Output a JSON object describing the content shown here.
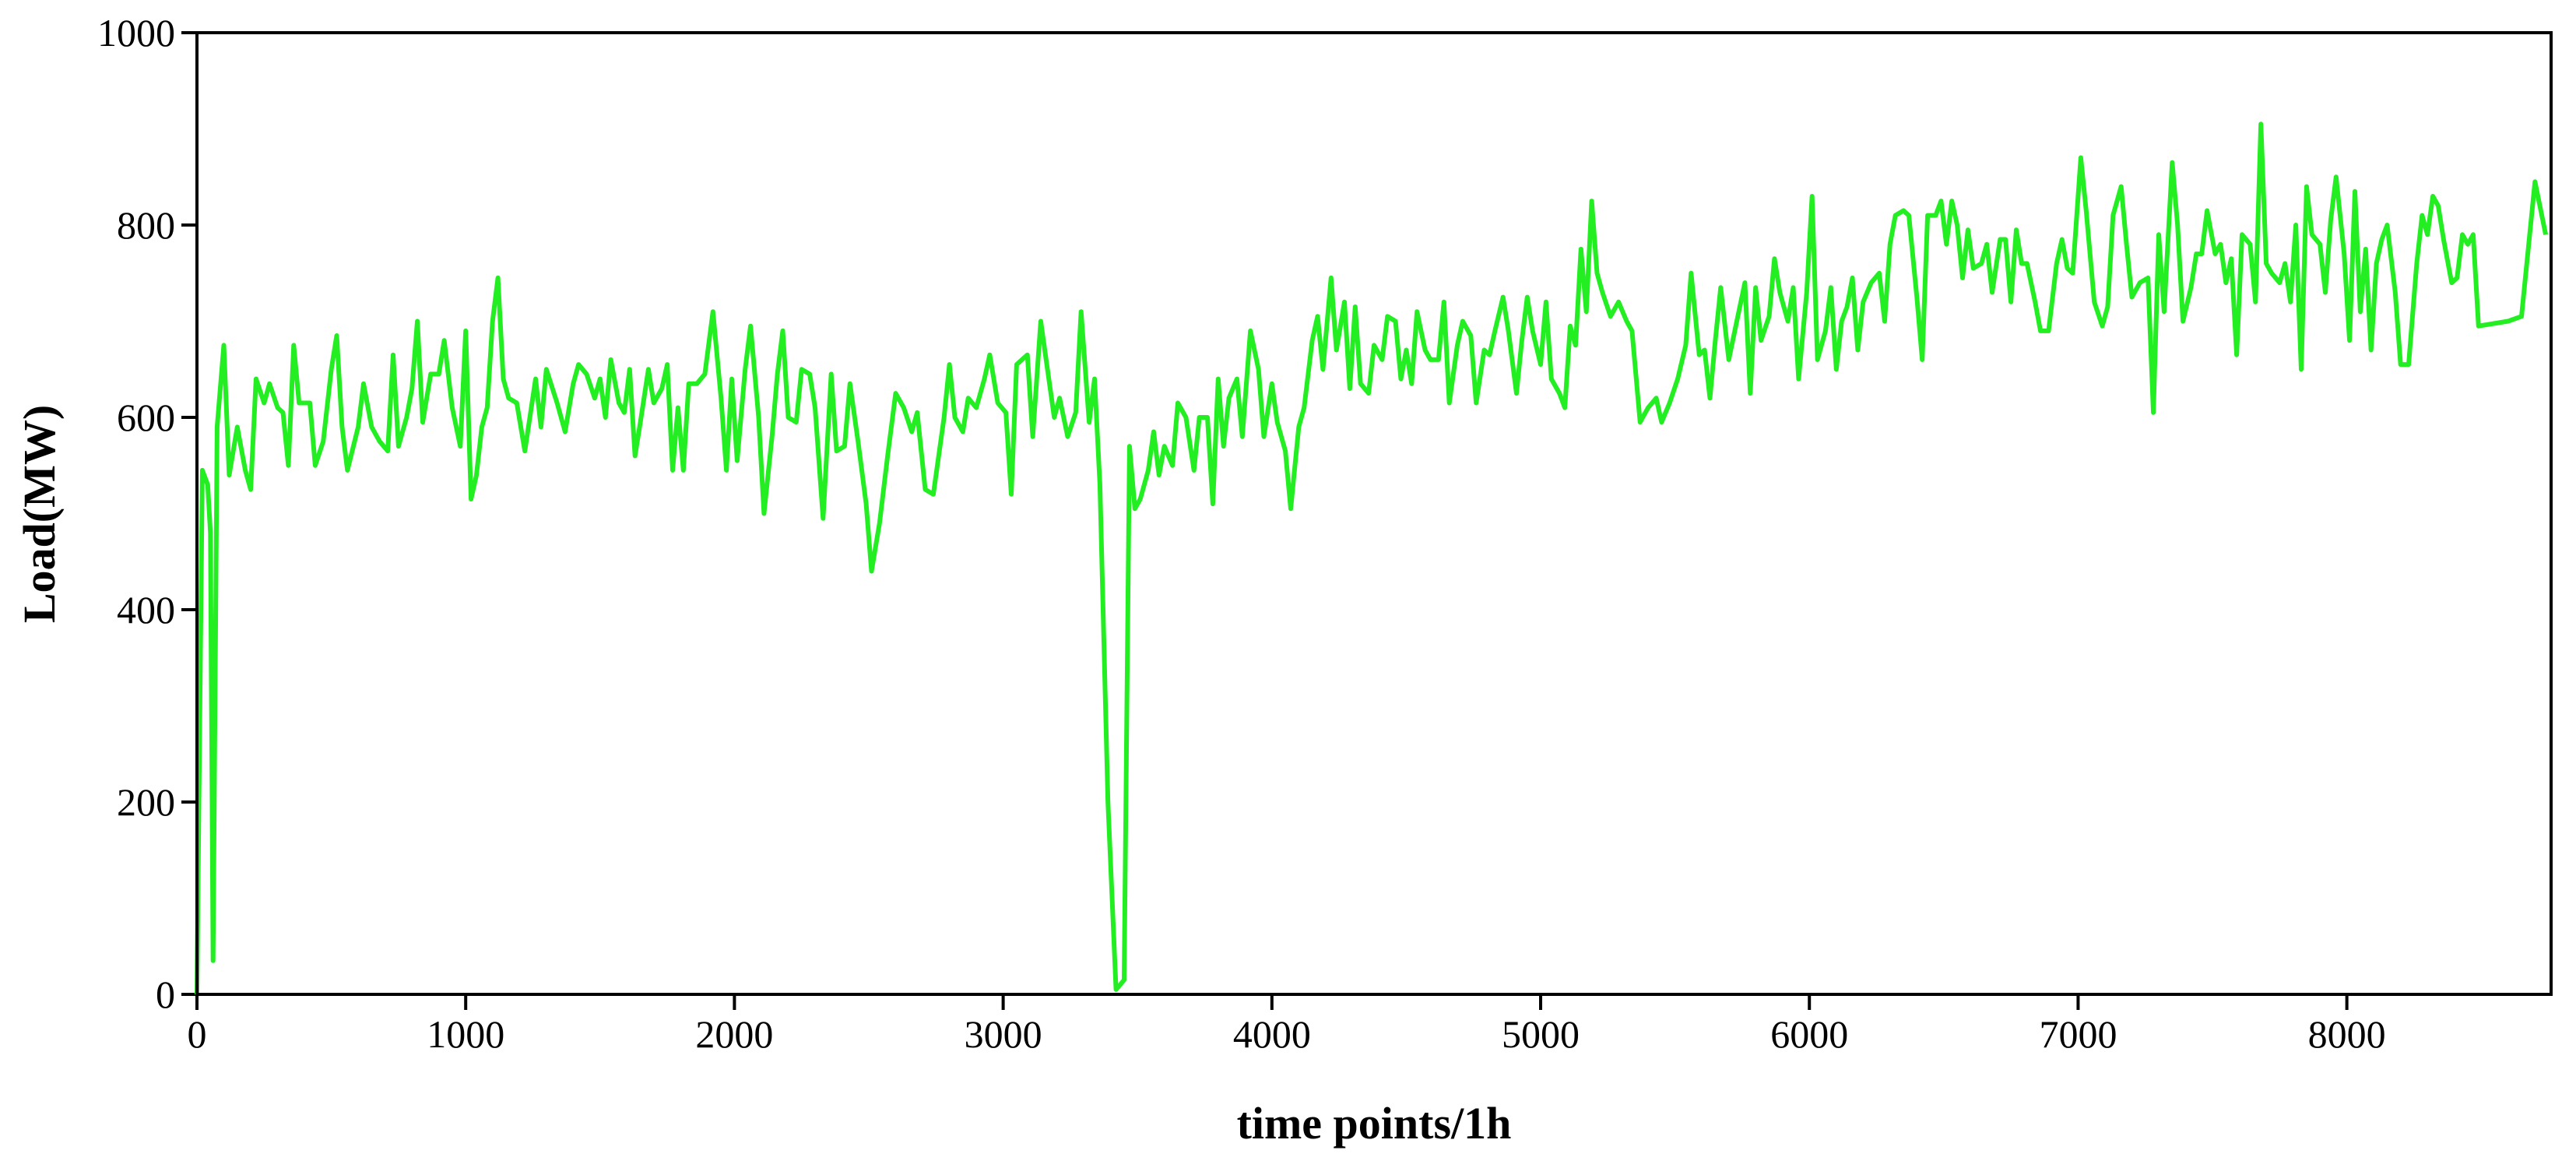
{
  "chart_data": {
    "type": "line",
    "xlabel": "time points/1h",
    "ylabel": "Load(MW)",
    "xlim": [
      0,
      8760
    ],
    "ylim": [
      0,
      1000
    ],
    "xticks": [
      0,
      1000,
      2000,
      3000,
      4000,
      5000,
      6000,
      7000,
      8000
    ],
    "yticks": [
      0,
      200,
      400,
      600,
      800,
      1000
    ],
    "color": "#22ee22",
    "x": [
      0,
      20,
      40,
      50,
      60,
      75,
      100,
      120,
      150,
      180,
      200,
      220,
      250,
      270,
      300,
      320,
      340,
      360,
      380,
      420,
      440,
      470,
      500,
      520,
      540,
      560,
      600,
      620,
      650,
      680,
      710,
      730,
      750,
      780,
      800,
      820,
      840,
      870,
      900,
      920,
      950,
      980,
      1000,
      1020,
      1040,
      1060,
      1080,
      1100,
      1120,
      1140,
      1160,
      1190,
      1220,
      1260,
      1280,
      1300,
      1340,
      1370,
      1400,
      1420,
      1450,
      1480,
      1500,
      1520,
      1540,
      1570,
      1590,
      1610,
      1630,
      1650,
      1680,
      1700,
      1730,
      1750,
      1770,
      1790,
      1810,
      1830,
      1860,
      1890,
      1920,
      1950,
      1970,
      1990,
      2010,
      2040,
      2060,
      2090,
      2110,
      2140,
      2160,
      2180,
      2200,
      2230,
      2250,
      2280,
      2300,
      2330,
      2360,
      2380,
      2410,
      2430,
      2460,
      2490,
      2510,
      2540,
      2570,
      2600,
      2630,
      2660,
      2680,
      2710,
      2740,
      2780,
      2800,
      2820,
      2850,
      2870,
      2900,
      2930,
      2950,
      2980,
      3010,
      3030,
      3050,
      3090,
      3110,
      3140,
      3160,
      3190,
      3210,
      3240,
      3270,
      3290,
      3320,
      3340,
      3360,
      3390,
      3420,
      3450,
      3470,
      3490,
      3510,
      3540,
      3560,
      3580,
      3600,
      3630,
      3650,
      3680,
      3710,
      3730,
      3760,
      3780,
      3800,
      3820,
      3840,
      3870,
      3890,
      3920,
      3950,
      3970,
      4000,
      4020,
      4050,
      4070,
      4100,
      4120,
      4150,
      4170,
      4190,
      4220,
      4240,
      4270,
      4290,
      4310,
      4330,
      4360,
      4380,
      4410,
      4430,
      4460,
      4480,
      4500,
      4520,
      4540,
      4570,
      4590,
      4620,
      4640,
      4660,
      4690,
      4710,
      4740,
      4760,
      4790,
      4810,
      4830,
      4860,
      4880,
      4910,
      4930,
      4950,
      4970,
      5000,
      5020,
      5040,
      5070,
      5090,
      5110,
      5130,
      5150,
      5170,
      5190,
      5210,
      5230,
      5260,
      5290,
      5320,
      5340,
      5370,
      5400,
      5430,
      5450,
      5480,
      5510,
      5540,
      5560,
      5590,
      5610,
      5630,
      5650,
      5670,
      5700,
      5730,
      5760,
      5780,
      5800,
      5820,
      5850,
      5870,
      5890,
      5920,
      5940,
      5960,
      5990,
      6010,
      6030,
      6060,
      6080,
      6100,
      6120,
      6140,
      6160,
      6180,
      6200,
      6230,
      6260,
      6280,
      6300,
      6320,
      6350,
      6370,
      6400,
      6420,
      6440,
      6470,
      6490,
      6510,
      6530,
      6550,
      6570,
      6590,
      6610,
      6640,
      6660,
      6680,
      6710,
      6730,
      6750,
      6770,
      6790,
      6810,
      6840,
      6860,
      6890,
      6920,
      6940,
      6960,
      6980,
      7010,
      7030,
      7060,
      7090,
      7110,
      7130,
      7160,
      7180,
      7200,
      7230,
      7260,
      7280,
      7300,
      7320,
      7350,
      7370,
      7390,
      7420,
      7440,
      7460,
      7480,
      7510,
      7530,
      7550,
      7570,
      7590,
      7610,
      7640,
      7660,
      7680,
      7700,
      7720,
      7750,
      7770,
      7790,
      7810,
      7830,
      7850,
      7870,
      7900,
      7920,
      7940,
      7960,
      7990,
      8010,
      8030,
      8050,
      8070,
      8090,
      8110,
      8130,
      8150,
      8180,
      8200,
      8230,
      8260,
      8280,
      8300,
      8320,
      8340,
      8360,
      8390,
      8410,
      8430,
      8450,
      8470,
      8490,
      8600,
      8650,
      8700,
      8740
    ],
    "values": [
      0,
      545,
      530,
      480,
      35,
      590,
      675,
      540,
      590,
      545,
      525,
      640,
      615,
      635,
      610,
      605,
      550,
      675,
      615,
      615,
      550,
      575,
      650,
      685,
      590,
      545,
      590,
      635,
      590,
      575,
      565,
      665,
      570,
      600,
      630,
      700,
      595,
      645,
      645,
      680,
      610,
      570,
      690,
      515,
      540,
      590,
      610,
      700,
      745,
      640,
      620,
      615,
      565,
      640,
      590,
      650,
      615,
      585,
      635,
      655,
      645,
      620,
      640,
      600,
      660,
      615,
      605,
      650,
      560,
      595,
      650,
      615,
      630,
      655,
      545,
      610,
      545,
      635,
      635,
      645,
      710,
      620,
      545,
      640,
      555,
      650,
      695,
      600,
      500,
      580,
      645,
      690,
      600,
      595,
      650,
      645,
      610,
      495,
      645,
      565,
      570,
      635,
      575,
      510,
      440,
      490,
      560,
      625,
      610,
      585,
      605,
      525,
      520,
      600,
      655,
      600,
      585,
      620,
      610,
      640,
      665,
      615,
      605,
      520,
      655,
      665,
      580,
      700,
      660,
      600,
      620,
      580,
      605,
      710,
      595,
      640,
      530,
      200,
      5,
      15,
      570,
      505,
      515,
      545,
      585,
      540,
      570,
      550,
      615,
      600,
      545,
      600,
      600,
      510,
      640,
      570,
      620,
      640,
      580,
      690,
      650,
      580,
      635,
      595,
      565,
      505,
      590,
      610,
      680,
      705,
      650,
      745,
      670,
      720,
      630,
      715,
      635,
      625,
      675,
      660,
      705,
      700,
      640,
      670,
      635,
      710,
      670,
      660,
      660,
      720,
      615,
      675,
      700,
      685,
      615,
      670,
      665,
      690,
      725,
      690,
      625,
      680,
      725,
      690,
      655,
      720,
      640,
      625,
      610,
      695,
      675,
      775,
      710,
      825,
      750,
      730,
      705,
      720,
      700,
      690,
      595,
      610,
      620,
      595,
      615,
      640,
      675,
      750,
      665,
      670,
      620,
      680,
      735,
      660,
      700,
      740,
      625,
      735,
      680,
      705,
      765,
      730,
      700,
      735,
      640,
      730,
      830,
      660,
      690,
      735,
      650,
      700,
      715,
      745,
      670,
      720,
      740,
      750,
      700,
      780,
      810,
      815,
      810,
      725,
      660,
      810,
      810,
      825,
      780,
      825,
      800,
      745,
      795,
      755,
      760,
      780,
      730,
      785,
      785,
      720,
      795,
      760,
      760,
      720,
      690,
      690,
      760,
      785,
      755,
      750,
      870,
      815,
      720,
      695,
      715,
      810,
      840,
      780,
      725,
      740,
      745,
      605,
      790,
      710,
      865,
      800,
      700,
      735,
      770,
      770,
      815,
      770,
      780,
      740,
      765,
      665,
      790,
      780,
      720,
      905,
      760,
      750,
      740,
      760,
      720,
      800,
      650,
      840,
      790,
      780,
      730,
      805,
      850,
      770,
      680,
      835,
      710,
      775,
      670,
      760,
      785,
      800,
      730,
      655,
      655,
      760,
      810,
      790,
      830,
      820,
      785,
      740,
      745,
      790,
      780,
      790,
      695,
      700,
      705,
      845,
      790
    ]
  }
}
